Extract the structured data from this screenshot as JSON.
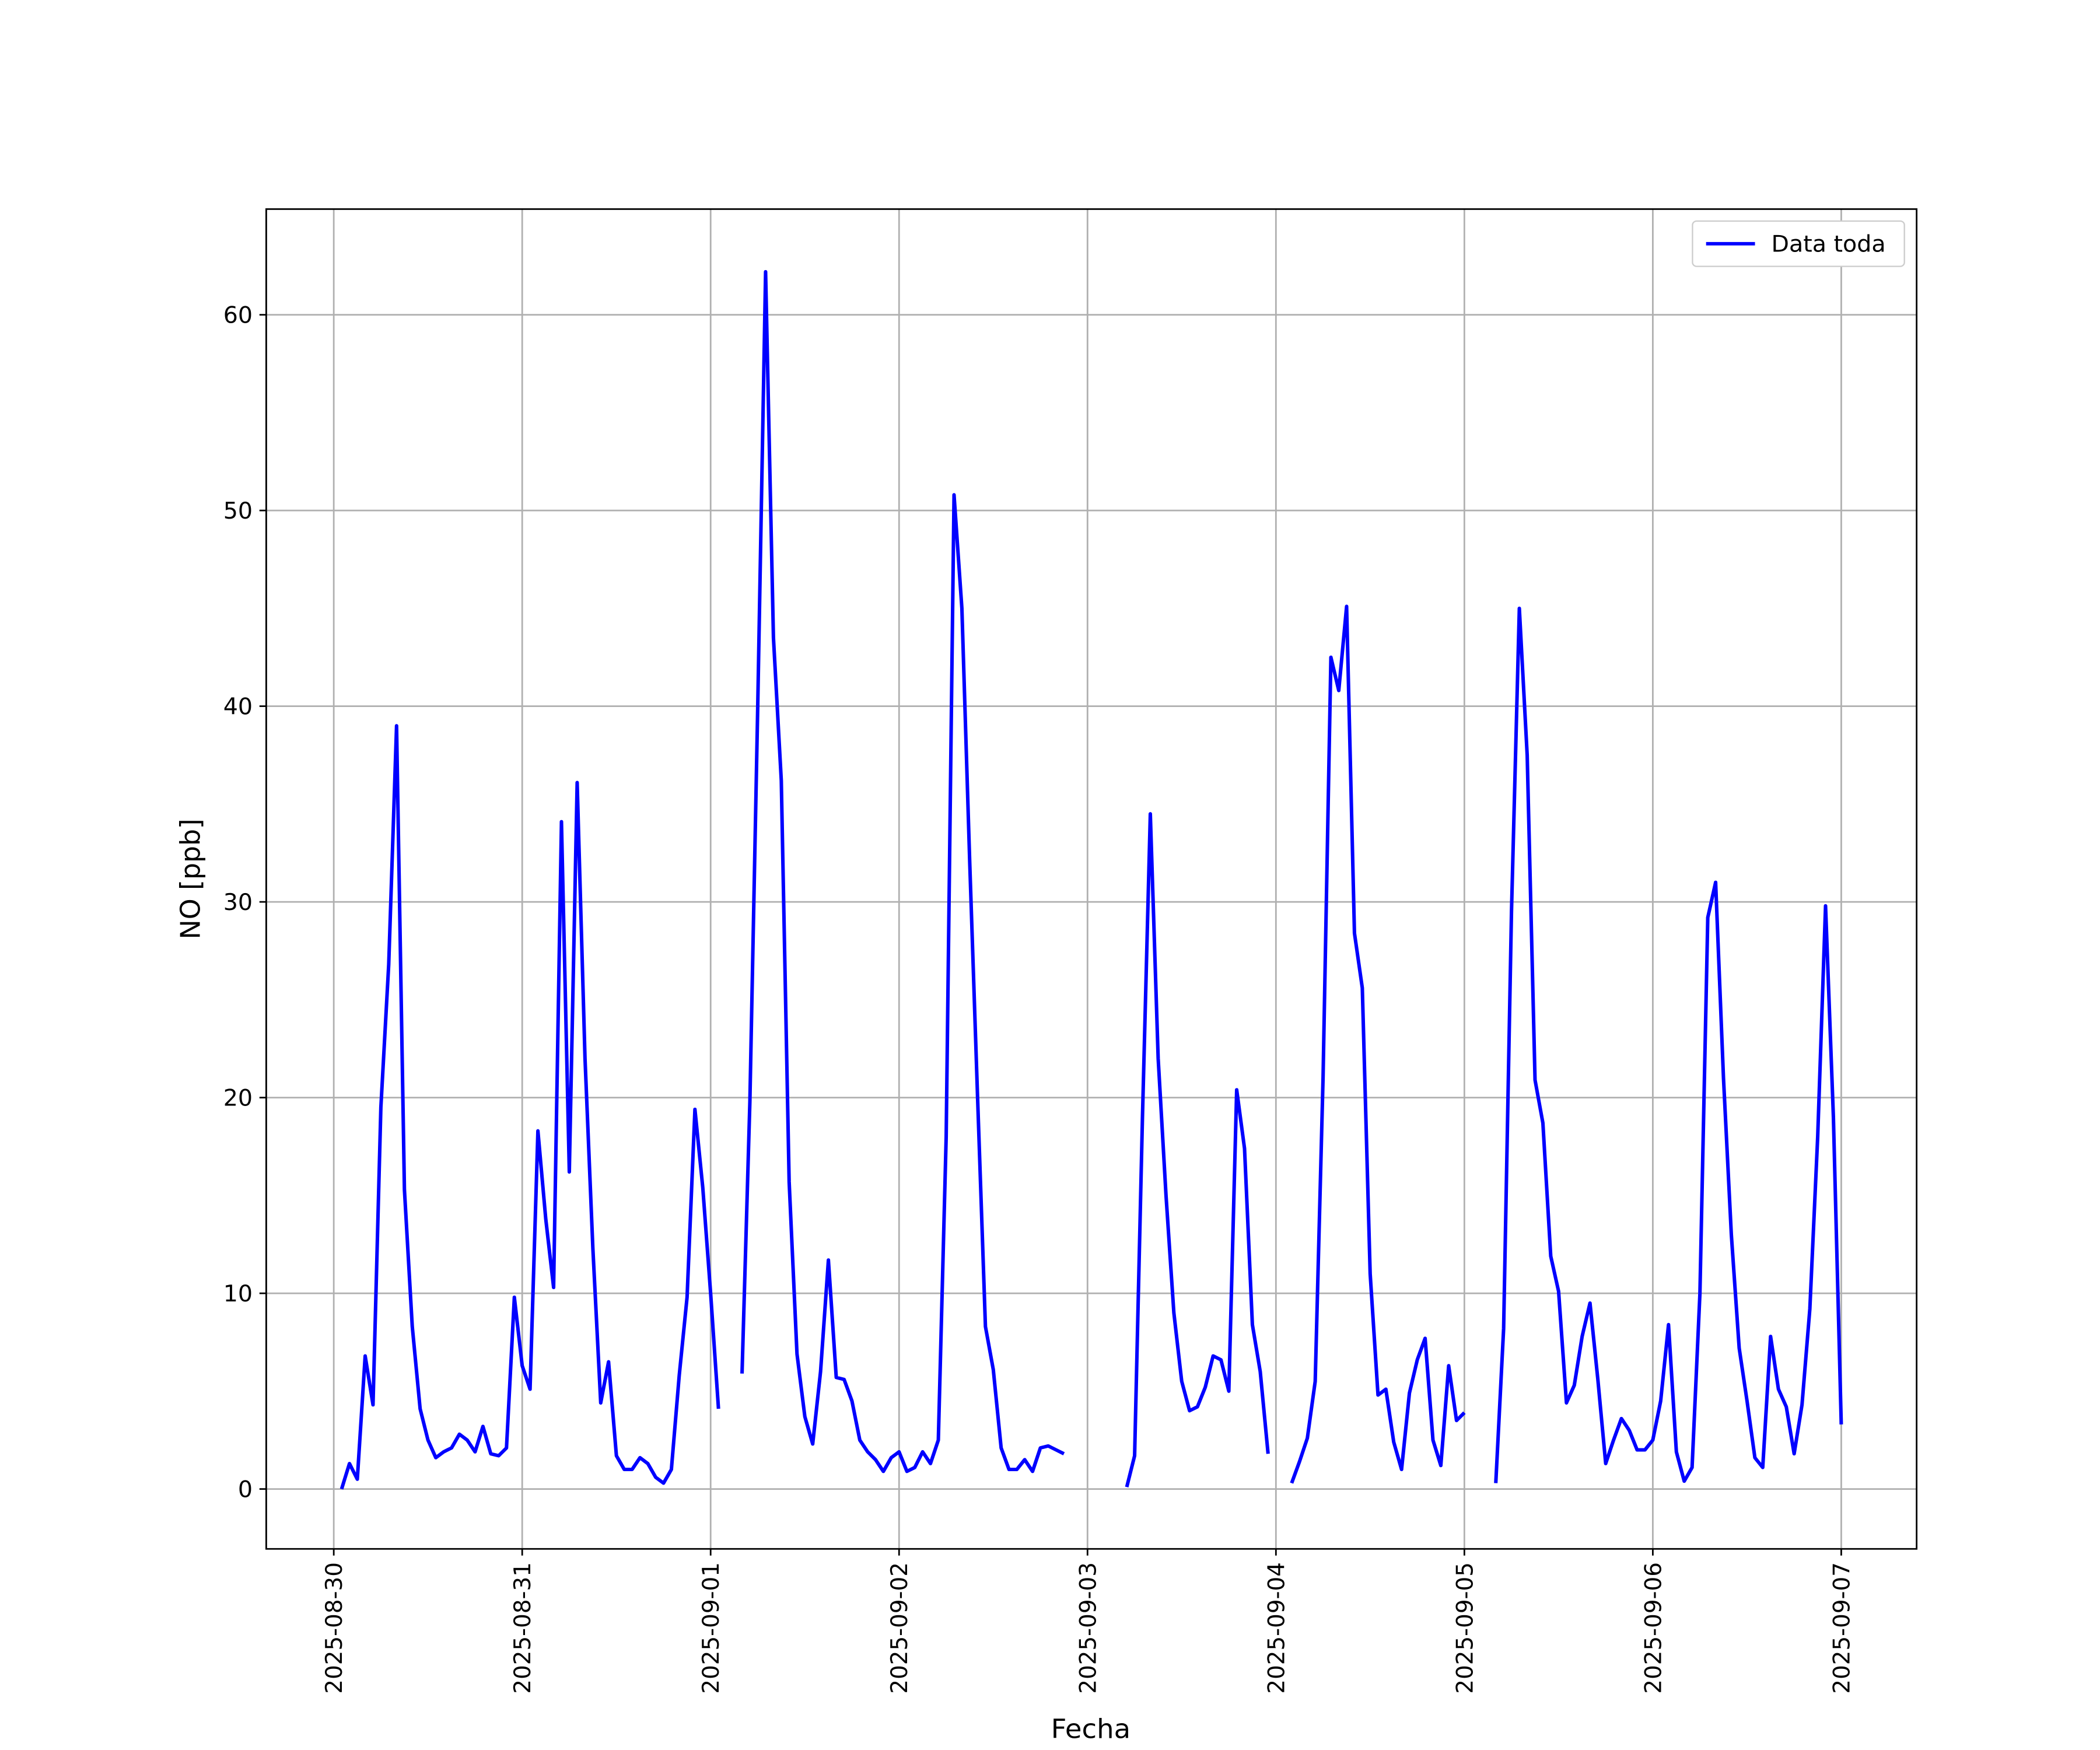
{
  "chart_data": {
    "type": "line",
    "x_label": "Fecha",
    "y_label": "NO [ppb]",
    "x": [
      1,
      2,
      3,
      4,
      5,
      6,
      7,
      8,
      9,
      10,
      11,
      12,
      13,
      14,
      15,
      16,
      17,
      18,
      19,
      20,
      21,
      22,
      23,
      24,
      25,
      26,
      27,
      28,
      29,
      30,
      31,
      32,
      33,
      34,
      35,
      36,
      37,
      38,
      39,
      40,
      41,
      42,
      43,
      44,
      45,
      46,
      47,
      48,
      49,
      50,
      51,
      52,
      53,
      54,
      55,
      56,
      57,
      58,
      59,
      60,
      61,
      62,
      63,
      64,
      65,
      66,
      67,
      68,
      69,
      70,
      71,
      72,
      73,
      74,
      75,
      76,
      77,
      78,
      79,
      80,
      81,
      82,
      83,
      84,
      85,
      86,
      87,
      88,
      89,
      90,
      91,
      92,
      93,
      94,
      95,
      96,
      97,
      98,
      99,
      100,
      101,
      102,
      103,
      104,
      105,
      106,
      107,
      108,
      109,
      110,
      111,
      112,
      113,
      114,
      115,
      116,
      117,
      118,
      119,
      120,
      121,
      122,
      123,
      124,
      125,
      126,
      127,
      128,
      129,
      130,
      131,
      132,
      133,
      134,
      135,
      136,
      137,
      138,
      139,
      140,
      141,
      142,
      143,
      144,
      145,
      146,
      147,
      148,
      149,
      150,
      151,
      152,
      153,
      154,
      155,
      156,
      157,
      158,
      159,
      160,
      161,
      162,
      163,
      164,
      165,
      166,
      167,
      168,
      169,
      170,
      171,
      172,
      173,
      174,
      175,
      176,
      177,
      178,
      179,
      180,
      181,
      182,
      183,
      184,
      185,
      186,
      187,
      188,
      189,
      190,
      191,
      192
    ],
    "series": [
      {
        "name": "Data toda",
        "color": "#0000ff",
        "values": [
          0,
          1.3,
          0.5,
          6.8,
          4.3,
          19.5,
          26.8,
          39,
          15.3,
          8.3,
          4.1,
          2.5,
          1.6,
          1.9,
          2.1,
          2.8,
          2.5,
          1.9,
          3.2,
          1.8,
          1.7,
          2.1,
          9.8,
          6.3,
          5.1,
          18.3,
          13.8,
          10.3,
          34.1,
          16.2,
          36.1,
          22,
          12.3,
          4.4,
          6.5,
          1.7,
          1,
          1,
          1.6,
          1.3,
          0.6,
          0.3,
          1,
          5.8,
          9.8,
          19.4,
          15.4,
          10,
          4.1,
          null,
          null,
          5.9,
          19.8,
          40,
          62.2,
          43.5,
          36.2,
          15.7,
          6.9,
          3.7,
          2.3,
          6,
          11.7,
          5.7,
          5.6,
          4.5,
          2.5,
          1.9,
          1.5,
          0.9,
          1.6,
          1.9,
          0.9,
          1.1,
          1.9,
          1.3,
          2.5,
          18,
          50.8,
          45,
          32,
          20,
          8.3,
          6.1,
          2.1,
          1,
          1,
          1.5,
          0.9,
          2.1,
          2.2,
          2,
          1.8,
          null,
          null,
          null,
          null,
          null,
          null,
          null,
          0.1,
          1.7,
          19,
          34.5,
          22,
          15,
          9,
          5.5,
          4,
          4.2,
          5.2,
          6.8,
          6.6,
          5,
          20.4,
          17.4,
          8.4,
          6,
          1.8,
          null,
          null,
          0.3,
          1.4,
          2.6,
          5.5,
          21,
          42.5,
          40.8,
          45.1,
          28.4,
          25.6,
          11,
          4.8,
          5.1,
          2.4,
          1,
          4.9,
          6.6,
          7.7,
          2.5,
          1.2,
          6.3,
          3.5,
          3.9,
          null,
          null,
          null,
          0.3,
          8.2,
          29.5,
          45,
          37.5,
          20.9,
          18.7,
          11.9,
          10.1,
          4.4,
          5.3,
          7.8,
          9.5,
          5.6,
          1.3,
          2.5,
          3.6,
          3,
          2,
          2,
          2.5,
          4.5,
          8.4,
          1.9,
          0.4,
          1.1,
          10,
          29.2,
          31,
          21,
          13,
          7.2,
          4.5,
          1.6,
          1.1,
          7.8,
          5.1,
          4.2,
          1.8,
          4.3,
          9.2,
          18,
          29.8,
          19,
          3.3
        ]
      }
    ],
    "xlim": [
      -8.6,
      201.6
    ],
    "ylim": [
      -3.06,
      65.4
    ],
    "xticks": [
      {
        "value": 0,
        "label": "2025-08-30"
      },
      {
        "value": 24,
        "label": "2025-08-31"
      },
      {
        "value": 48,
        "label": "2025-09-01"
      },
      {
        "value": 72,
        "label": "2025-09-02"
      },
      {
        "value": 96,
        "label": "2025-09-03"
      },
      {
        "value": 120,
        "label": "2025-09-04"
      },
      {
        "value": 144,
        "label": "2025-09-05"
      },
      {
        "value": 168,
        "label": "2025-09-06"
      },
      {
        "value": 192,
        "label": "2025-09-07"
      }
    ],
    "yticks": [
      0,
      10,
      20,
      30,
      40,
      50,
      60
    ],
    "grid": true,
    "legend": "upper right"
  }
}
